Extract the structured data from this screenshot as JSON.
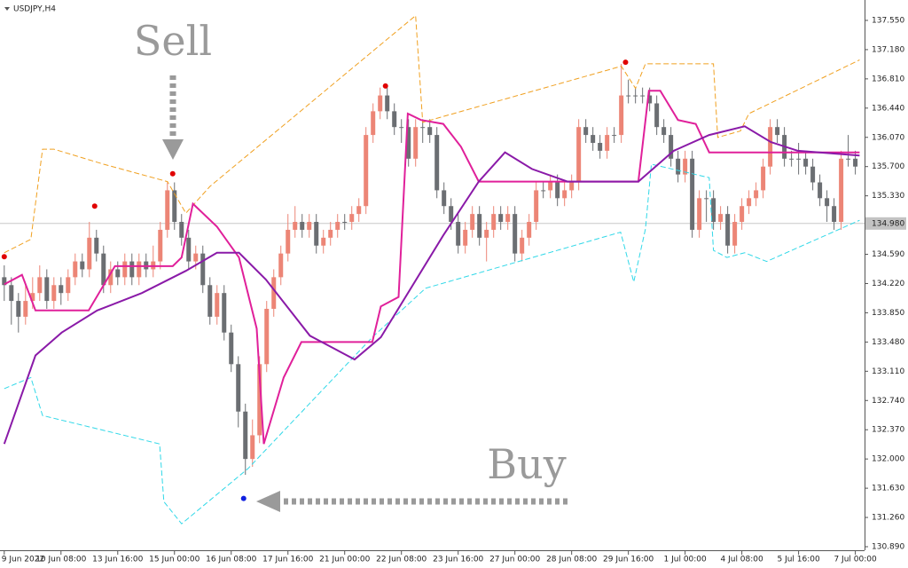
{
  "chart_data": {
    "type": "candlestick",
    "title": "USDJPY,H4",
    "up_color": "#ec8576",
    "down_color": "#6b6e72",
    "xlim": [
      -0.6,
      121.3
    ],
    "xticks": [
      {
        "value": 0,
        "label": "9 Jun 2022"
      },
      {
        "value": 8,
        "label": "10 Jun 08:00"
      },
      {
        "value": 16,
        "label": "13 Jun 16:00"
      },
      {
        "value": 24,
        "label": "15 Jun 00:00"
      },
      {
        "value": 32,
        "label": "16 Jun 08:00"
      },
      {
        "value": 40,
        "label": "17 Jun 16:00"
      },
      {
        "value": 48,
        "label": "21 Jun 00:00"
      },
      {
        "value": 56,
        "label": "22 Jun 08:00"
      },
      {
        "value": 64,
        "label": "23 Jun 16:00"
      },
      {
        "value": 72,
        "label": "27 Jun 00:00"
      },
      {
        "value": 80,
        "label": "28 Jun 08:00"
      },
      {
        "value": 88,
        "label": "29 Jun 16:00"
      },
      {
        "value": 96,
        "label": "1 Jul 00:00"
      },
      {
        "value": 104,
        "label": "4 Jul 08:00"
      },
      {
        "value": 112,
        "label": "5 Jul 16:00"
      },
      {
        "value": 120,
        "label": "7 Jul 00:00"
      }
    ],
    "ylim": [
      130.845,
      137.808
    ],
    "yticks": [
      {
        "value": 137.55,
        "label": "137.550"
      },
      {
        "value": 137.18,
        "label": "137.180"
      },
      {
        "value": 136.81,
        "label": "136.810"
      },
      {
        "value": 136.44,
        "label": "136.440"
      },
      {
        "value": 136.07,
        "label": "136.070"
      },
      {
        "value": 135.7,
        "label": "135.700"
      },
      {
        "value": 135.33,
        "label": "135.330"
      },
      {
        "value": 134.59,
        "label": "134.590"
      },
      {
        "value": 134.22,
        "label": "134.220"
      },
      {
        "value": 133.85,
        "label": "133.850"
      },
      {
        "value": 133.48,
        "label": "133.480"
      },
      {
        "value": 133.11,
        "label": "133.110"
      },
      {
        "value": 132.74,
        "label": "132.740"
      },
      {
        "value": 132.37,
        "label": "132.370"
      },
      {
        "value": 132,
        "label": "132.000"
      },
      {
        "value": 131.63,
        "label": "131.630"
      },
      {
        "value": 131.26,
        "label": "131.260"
      },
      {
        "value": 130.89,
        "label": "130.890"
      }
    ],
    "current_price": {
      "value": 134.98,
      "label": "134.980"
    },
    "ohlc": [
      [
        134.3,
        134.45,
        134.0,
        134.2
      ],
      [
        134.2,
        134.3,
        133.7,
        134.0
      ],
      [
        134.0,
        134.1,
        133.6,
        133.8
      ],
      [
        133.8,
        134.2,
        133.7,
        134.0
      ],
      [
        134.0,
        134.3,
        133.9,
        134.1
      ],
      [
        134.1,
        134.45,
        134.0,
        134.3
      ],
      [
        134.3,
        134.4,
        133.9,
        134.0
      ],
      [
        134.0,
        134.3,
        133.9,
        134.2
      ],
      [
        134.2,
        134.3,
        133.95,
        134.1
      ],
      [
        134.1,
        134.4,
        134.0,
        134.3
      ],
      [
        134.3,
        134.6,
        134.2,
        134.5
      ],
      [
        134.5,
        134.6,
        134.3,
        134.4
      ],
      [
        134.4,
        135.0,
        134.3,
        134.8
      ],
      [
        134.8,
        134.9,
        134.5,
        134.6
      ],
      [
        134.6,
        134.7,
        134.1,
        134.2
      ],
      [
        134.2,
        134.5,
        134.1,
        134.4
      ],
      [
        134.4,
        134.5,
        134.2,
        134.3
      ],
      [
        134.3,
        134.6,
        134.2,
        134.5
      ],
      [
        134.5,
        134.6,
        134.2,
        134.3
      ],
      [
        134.3,
        134.6,
        134.2,
        134.5
      ],
      [
        134.5,
        134.6,
        134.3,
        134.4
      ],
      [
        134.4,
        134.7,
        134.3,
        134.5
      ],
      [
        134.5,
        135.0,
        134.4,
        134.9
      ],
      [
        134.9,
        135.5,
        134.8,
        135.4
      ],
      [
        135.4,
        135.5,
        134.9,
        135.0
      ],
      [
        135.0,
        135.1,
        134.7,
        134.8
      ],
      [
        134.8,
        134.9,
        134.4,
        134.5
      ],
      [
        134.5,
        134.7,
        134.4,
        134.6
      ],
      [
        134.6,
        134.7,
        134.1,
        134.2
      ],
      [
        134.2,
        134.3,
        133.7,
        133.8
      ],
      [
        133.8,
        134.2,
        133.7,
        134.1
      ],
      [
        134.1,
        134.2,
        133.5,
        133.6
      ],
      [
        133.6,
        133.7,
        133.1,
        133.2
      ],
      [
        133.2,
        133.3,
        132.4,
        132.6
      ],
      [
        132.6,
        132.7,
        131.8,
        132.0
      ],
      [
        132.0,
        132.5,
        131.9,
        132.3
      ],
      [
        132.3,
        133.3,
        132.2,
        133.2
      ],
      [
        133.2,
        134.0,
        133.1,
        133.9
      ],
      [
        133.9,
        134.4,
        133.8,
        134.3
      ],
      [
        134.3,
        134.7,
        134.2,
        134.6
      ],
      [
        134.6,
        135.1,
        134.5,
        134.9
      ],
      [
        134.9,
        135.2,
        134.8,
        135.0
      ],
      [
        135.0,
        135.1,
        134.8,
        134.9
      ],
      [
        134.9,
        135.1,
        134.8,
        135.0
      ],
      [
        135.0,
        135.1,
        134.6,
        134.7
      ],
      [
        134.7,
        134.9,
        134.6,
        134.8
      ],
      [
        134.8,
        135.0,
        134.7,
        134.9
      ],
      [
        134.9,
        135.1,
        134.8,
        135.0
      ],
      [
        135.0,
        135.1,
        134.9,
        135.0
      ],
      [
        135.0,
        135.2,
        134.9,
        135.1
      ],
      [
        135.1,
        135.3,
        135.0,
        135.2
      ],
      [
        135.2,
        136.2,
        135.1,
        136.1
      ],
      [
        136.1,
        136.5,
        136.0,
        136.4
      ],
      [
        136.4,
        136.7,
        136.3,
        136.6
      ],
      [
        136.6,
        136.7,
        136.3,
        136.4
      ],
      [
        136.4,
        136.5,
        136.1,
        136.2
      ],
      [
        136.2,
        136.3,
        136.0,
        136.2
      ],
      [
        136.2,
        136.3,
        135.7,
        135.8
      ],
      [
        135.8,
        136.3,
        135.7,
        136.2
      ],
      [
        136.2,
        136.3,
        136.0,
        136.2
      ],
      [
        136.2,
        136.3,
        136.0,
        136.1
      ],
      [
        136.1,
        136.2,
        135.3,
        135.4
      ],
      [
        135.4,
        135.5,
        135.1,
        135.2
      ],
      [
        135.2,
        135.3,
        134.9,
        135.0
      ],
      [
        135.0,
        135.1,
        134.6,
        134.7
      ],
      [
        134.7,
        135.0,
        134.6,
        134.9
      ],
      [
        134.9,
        135.2,
        134.8,
        135.1
      ],
      [
        135.1,
        135.2,
        134.7,
        134.8
      ],
      [
        134.8,
        135.0,
        134.5,
        134.9
      ],
      [
        134.9,
        135.2,
        134.8,
        135.1
      ],
      [
        135.1,
        135.2,
        134.9,
        135.0
      ],
      [
        135.0,
        135.2,
        134.9,
        135.1
      ],
      [
        135.1,
        135.2,
        134.5,
        134.6
      ],
      [
        134.6,
        134.9,
        134.5,
        134.8
      ],
      [
        134.8,
        135.1,
        134.7,
        135.0
      ],
      [
        135.0,
        135.5,
        134.9,
        135.4
      ],
      [
        135.4,
        135.5,
        135.3,
        135.4
      ],
      [
        135.4,
        135.6,
        135.3,
        135.5
      ],
      [
        135.5,
        135.6,
        135.2,
        135.3
      ],
      [
        135.3,
        135.5,
        135.2,
        135.4
      ],
      [
        135.4,
        135.6,
        135.3,
        135.5
      ],
      [
        135.5,
        136.3,
        135.4,
        136.2
      ],
      [
        136.2,
        136.3,
        136.0,
        136.1
      ],
      [
        136.1,
        136.2,
        135.9,
        136.0
      ],
      [
        136.0,
        136.1,
        135.8,
        135.9
      ],
      [
        135.9,
        136.2,
        135.8,
        136.1
      ],
      [
        136.1,
        136.2,
        136.0,
        136.1
      ],
      [
        136.1,
        137.0,
        136.0,
        136.6
      ],
      [
        136.6,
        136.8,
        136.5,
        136.6
      ],
      [
        136.6,
        136.7,
        136.5,
        136.6
      ],
      [
        136.6,
        136.7,
        136.5,
        136.6
      ],
      [
        136.6,
        136.7,
        136.4,
        136.5
      ],
      [
        136.5,
        136.6,
        136.1,
        136.2
      ],
      [
        136.2,
        136.3,
        136.0,
        136.1
      ],
      [
        136.1,
        136.2,
        135.7,
        135.8
      ],
      [
        135.8,
        135.9,
        135.5,
        135.6
      ],
      [
        135.6,
        135.9,
        135.5,
        135.8
      ],
      [
        135.8,
        135.9,
        134.8,
        134.9
      ],
      [
        134.9,
        135.4,
        134.8,
        135.3
      ],
      [
        135.3,
        135.4,
        135.0,
        135.3
      ],
      [
        135.3,
        135.4,
        134.9,
        135.0
      ],
      [
        135.0,
        135.2,
        134.9,
        135.1
      ],
      [
        135.1,
        135.2,
        134.6,
        134.7
      ],
      [
        134.7,
        135.1,
        134.6,
        135.0
      ],
      [
        135.0,
        135.3,
        134.9,
        135.2
      ],
      [
        135.2,
        135.4,
        135.1,
        135.3
      ],
      [
        135.3,
        135.5,
        135.2,
        135.4
      ],
      [
        135.4,
        135.8,
        135.3,
        135.7
      ],
      [
        135.7,
        136.3,
        135.6,
        136.2
      ],
      [
        136.2,
        136.3,
        136.0,
        136.1
      ],
      [
        136.1,
        136.2,
        135.7,
        135.8
      ],
      [
        135.8,
        135.9,
        135.7,
        135.8
      ],
      [
        135.8,
        136.0,
        135.6,
        135.8
      ],
      [
        135.8,
        135.9,
        135.6,
        135.7
      ],
      [
        135.7,
        135.8,
        135.4,
        135.5
      ],
      [
        135.5,
        135.6,
        135.2,
        135.3
      ],
      [
        135.3,
        135.4,
        135.0,
        135.2
      ],
      [
        135.2,
        135.3,
        134.9,
        135.0
      ],
      [
        135.0,
        135.9,
        134.9,
        135.8
      ],
      [
        135.8,
        136.1,
        135.7,
        135.8
      ],
      [
        135.8,
        135.9,
        135.6,
        135.7
      ]
    ],
    "series": [
      {
        "color": "#f0a020",
        "dashed": true,
        "x": [
          0,
          3.75,
          5.4,
          7,
          14,
          23,
          25.6,
          29,
          58,
          59,
          87,
          89,
          90.4,
          100,
          100.6,
          103.8,
          105,
          120.6
        ],
        "values": [
          134.61,
          134.78,
          135.92,
          135.92,
          135.73,
          135.51,
          135.11,
          135.45,
          137.61,
          136.26,
          136.97,
          136.69,
          137.0,
          137.0,
          136.07,
          136.15,
          136.37,
          137.05
        ]
      },
      {
        "color": "#30d8e8",
        "dashed": true,
        "x": [
          0,
          3.75,
          5.4,
          21.9,
          22.5,
          25,
          34.4,
          51.9,
          59.4,
          86.9,
          88.75,
          90.4,
          91.25,
          99.4,
          100,
          101.9,
          104.4,
          107.5,
          120.6
        ],
        "values": [
          132.89,
          133.03,
          132.55,
          132.19,
          131.46,
          131.18,
          131.88,
          133.54,
          134.16,
          134.87,
          134.24,
          134.91,
          135.73,
          135.56,
          134.64,
          134.55,
          134.61,
          134.5,
          135.02
        ]
      },
      {
        "color": "#e0209a",
        "dashed": false,
        "x": [
          0,
          2.5,
          4.4,
          11.9,
          15.6,
          23.75,
          25,
          26.6,
          30,
          33.1,
          35.6,
          36.6,
          39.4,
          41.9,
          51.9,
          53.1,
          55.6,
          56.9,
          58.75,
          61.9,
          64.4,
          66.9,
          89.4,
          90.9,
          92.5,
          95,
          97.5,
          99.4,
          120.6
        ],
        "values": [
          134.21,
          134.33,
          133.88,
          133.88,
          134.44,
          134.44,
          134.55,
          135.23,
          134.94,
          134.55,
          133.65,
          132.19,
          133.03,
          133.48,
          133.48,
          133.93,
          134.05,
          136.37,
          136.29,
          136.24,
          135.95,
          135.51,
          135.51,
          136.66,
          136.66,
          136.29,
          136.24,
          135.88,
          135.88
        ]
      },
      {
        "color": "#8a1aa8",
        "dashed": false,
        "x": [
          0,
          4.4,
          8.1,
          13.1,
          19.4,
          25.6,
          30,
          33.1,
          36.9,
          43.1,
          49.4,
          53.1,
          61.9,
          66.9,
          70.6,
          74.4,
          79.4,
          89.4,
          94.4,
          99.4,
          104.4,
          108.1,
          111.9,
          120.6
        ],
        "values": [
          132.19,
          133.31,
          133.6,
          133.88,
          134.1,
          134.38,
          134.61,
          134.61,
          134.27,
          133.56,
          133.26,
          133.54,
          134.83,
          135.51,
          135.88,
          135.67,
          135.51,
          135.51,
          135.9,
          136.1,
          136.21,
          136.01,
          135.9,
          135.84
        ]
      }
    ],
    "signals": [
      {
        "color": "#e00000",
        "x": [
          0,
          12.75,
          23.75,
          53.75,
          87.6
        ],
        "values": [
          134.56,
          135.2,
          135.61,
          136.72,
          137.02
        ]
      },
      {
        "color": "#1020e0",
        "x": [
          33.75
        ],
        "values": [
          131.5
        ]
      }
    ],
    "annotations": [
      {
        "text": "Sell"
      },
      {
        "text": "Buy"
      }
    ]
  }
}
